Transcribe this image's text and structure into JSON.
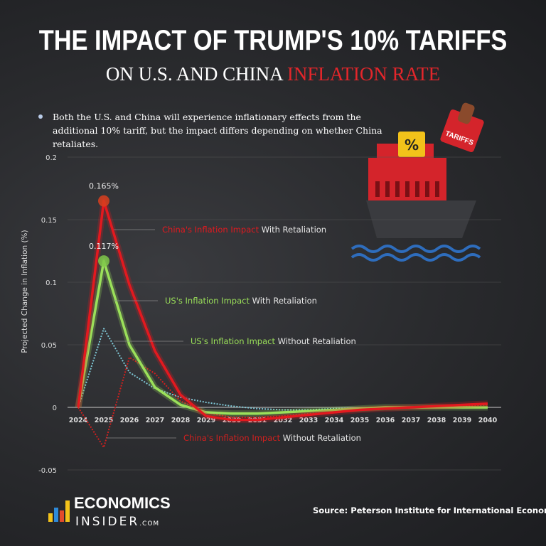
{
  "header": {
    "title": "THE IMPACT OF TRUMP'S 10% TARIFFS",
    "subtitle_plain": "ON U.S. AND CHINA ",
    "subtitle_accent": "INFLATION RATE"
  },
  "bullet": "Both the U.S. and China will experience inflationary effects from the additional 10% tariff, but the impact differs depending on whether China retaliates.",
  "illustration": {
    "stamp_text": "TARIFFS",
    "badge_text": "%"
  },
  "source": "Source: Peterson Institute for International Economics",
  "logo": {
    "line1": "ECONOMICS",
    "line2": "INSIDER",
    "suffix": ".COM"
  },
  "chart_data": {
    "type": "line",
    "ylabel": "Projected Change in Inflation (%)",
    "xlabel": "",
    "x": [
      "2024",
      "2025",
      "2026",
      "2027",
      "2028",
      "2029",
      "2030",
      "2031",
      "2032",
      "2033",
      "2034",
      "2035",
      "2036",
      "2037",
      "2038",
      "2039",
      "2040"
    ],
    "ylim": [
      -0.06,
      0.2
    ],
    "yticks": [
      "0.2",
      "0.15",
      "0.1",
      "0.05",
      "0",
      "-0.05"
    ],
    "ytick_values": [
      0.2,
      0.15,
      0.1,
      0.05,
      0,
      -0.05
    ],
    "grid": true,
    "series": [
      {
        "label_colored": "China's Inflation Impact",
        "label_rest": " With Retaliation",
        "color": "#e3191f",
        "style": "solid",
        "values": [
          0,
          0.165,
          0.098,
          0.045,
          0.01,
          -0.007,
          -0.01,
          -0.01,
          -0.008,
          -0.006,
          -0.004,
          -0.002,
          -0.001,
          0,
          0.001,
          0.002,
          0.003
        ]
      },
      {
        "label_colored": "US's Inflation Impact",
        "label_rest": " With Retaliation",
        "color": "#9be05a",
        "style": "solid",
        "values": [
          0,
          0.117,
          0.05,
          0.016,
          0.002,
          -0.004,
          -0.005,
          -0.005,
          -0.004,
          -0.003,
          -0.002,
          -0.001,
          0,
          0,
          0,
          0,
          0
        ]
      },
      {
        "label_colored": "US's Inflation Impact",
        "label_rest": " Without Retaliation",
        "color": "#7fc8d6",
        "style": "dotted",
        "values": [
          0,
          0.063,
          0.028,
          0.015,
          0.008,
          0.004,
          0.001,
          -0.001,
          -0.002,
          -0.002,
          -0.001,
          -0.001,
          0,
          0,
          0,
          0,
          0
        ]
      },
      {
        "label_colored": "China's Inflation Impact",
        "label_rest": " Without Retaliation",
        "color": "#d0201f",
        "style": "dotted",
        "values": [
          0,
          -0.032,
          0.04,
          0.027,
          0.005,
          -0.004,
          -0.008,
          -0.008,
          -0.007,
          -0.005,
          -0.004,
          -0.002,
          -0.001,
          0,
          0.001,
          0.001,
          0.002
        ]
      }
    ],
    "annotations": [
      {
        "text": "0.165%",
        "series": 0,
        "x": "2025"
      },
      {
        "text": "0.117%",
        "series": 1,
        "x": "2025"
      }
    ]
  }
}
